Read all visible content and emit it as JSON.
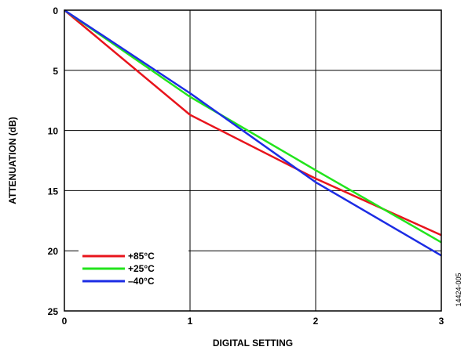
{
  "chart_data": {
    "type": "line",
    "xlabel": "DIGITAL SETTING",
    "ylabel": "ATTENUATION (dB)",
    "xlim": [
      0,
      3
    ],
    "ylim": [
      0,
      25
    ],
    "y_inverted": true,
    "x_ticks": [
      "0",
      "1",
      "2",
      "3"
    ],
    "y_ticks": [
      "0",
      "5",
      "10",
      "15",
      "20",
      "25"
    ],
    "x_tick_values": [
      0,
      1,
      2,
      3
    ],
    "y_tick_values": [
      0,
      5,
      10,
      15,
      20,
      25
    ],
    "grid": true,
    "legend_position": "bottom-left",
    "series": [
      {
        "name": "+85°C",
        "color": "#e8141c",
        "x": [
          0,
          1,
          2,
          3
        ],
        "y": [
          0,
          8.7,
          14.0,
          18.7
        ]
      },
      {
        "name": "+25°C",
        "color": "#22e41c",
        "x": [
          0,
          1,
          2,
          3
        ],
        "y": [
          0,
          7.2,
          13.3,
          19.3
        ]
      },
      {
        "name": "–40°C",
        "color": "#1c2ce4",
        "x": [
          0,
          1,
          2,
          3
        ],
        "y": [
          0,
          6.9,
          14.3,
          20.4
        ]
      }
    ]
  },
  "figure_id": "14424-005"
}
